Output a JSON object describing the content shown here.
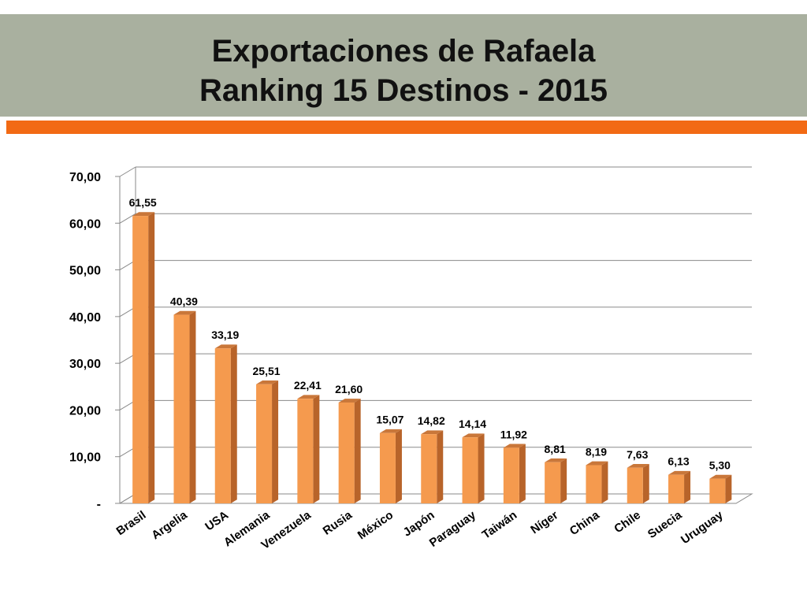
{
  "slide": {
    "title_line1": "Exportaciones de Rafaela",
    "title_line2": "Ranking 15 Destinos - 2015"
  },
  "colors": {
    "title_band": "#a9b09f",
    "accent_rule": "#f26a14",
    "bar_front": "#f59a4e",
    "bar_side": "#b8642a",
    "bar_top": "#c9773a",
    "grid": "#8a8a8a"
  },
  "chart_data": {
    "type": "bar",
    "title": "",
    "xlabel": "",
    "ylabel": "",
    "categories": [
      "Brasil",
      "Argelia",
      "USA",
      "Alemania",
      "Venezuela",
      "Rusia",
      "México",
      "Japón",
      "Paraguay",
      "Taiwán",
      "Níger",
      "China",
      "Chile",
      "Suecia",
      "Uruguay"
    ],
    "values": [
      61.55,
      40.39,
      33.19,
      25.51,
      22.41,
      21.6,
      15.07,
      14.82,
      14.14,
      11.92,
      8.81,
      8.19,
      7.63,
      6.13,
      5.3
    ],
    "value_labels": [
      "61,55",
      "40,39",
      "33,19",
      "25,51",
      "22,41",
      "21,60",
      "15,07",
      "14,82",
      "14,14",
      "11,92",
      "8,81",
      "8,19",
      "7,63",
      "6,13",
      "5,30"
    ],
    "ylim": [
      0,
      70
    ],
    "y_ticks": [
      0,
      10,
      20,
      30,
      40,
      50,
      60,
      70
    ],
    "y_tick_labels": [
      "-",
      "10,00",
      "20,00",
      "30,00",
      "40,00",
      "50,00",
      "60,00",
      "70,00"
    ],
    "grid": true,
    "legend": "none",
    "style": "3d-column"
  }
}
